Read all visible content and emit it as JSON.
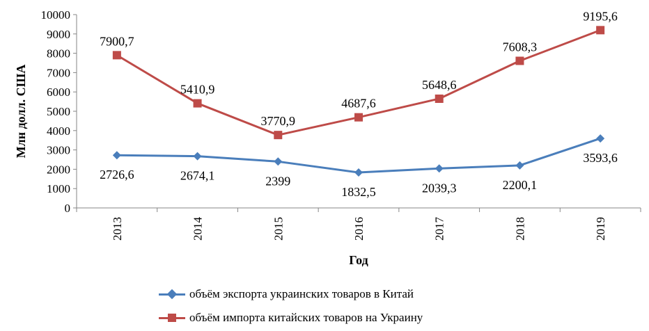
{
  "chart_data": {
    "type": "line",
    "categories": [
      "2013",
      "2014",
      "2015",
      "2016",
      "2017",
      "2018",
      "2019"
    ],
    "series": [
      {
        "name": "объём экспорта украинских  товаров в Китай",
        "values": [
          2726.6,
          2674.1,
          2399,
          1832.5,
          2039.3,
          2200.1,
          3593.6
        ],
        "labels": [
          "2726,6",
          "2674,1",
          "2399",
          "1832,5",
          "2039,3",
          "2200,1",
          "3593,6"
        ],
        "color": "#4a7ebb",
        "marker": "diamond"
      },
      {
        "name": "объём импорта китайских товаров на Украину",
        "values": [
          7900.7,
          5410.9,
          3770.9,
          4687.6,
          5648.6,
          7608.3,
          9195.6
        ],
        "labels": [
          "7900,7",
          "5410,9",
          "3770,9",
          "4687,6",
          "5648,6",
          "7608,3",
          "9195,6"
        ],
        "color": "#be4b48",
        "marker": "square"
      }
    ],
    "xlabel": "Год",
    "ylabel": "Млн долл. США",
    "ylim": [
      0,
      10000
    ],
    "yticks": [
      "0",
      "1000",
      "2000",
      "3000",
      "4000",
      "5000",
      "6000",
      "7000",
      "8000",
      "9000",
      "10000"
    ],
    "grid": false,
    "legend_position": "bottom"
  }
}
